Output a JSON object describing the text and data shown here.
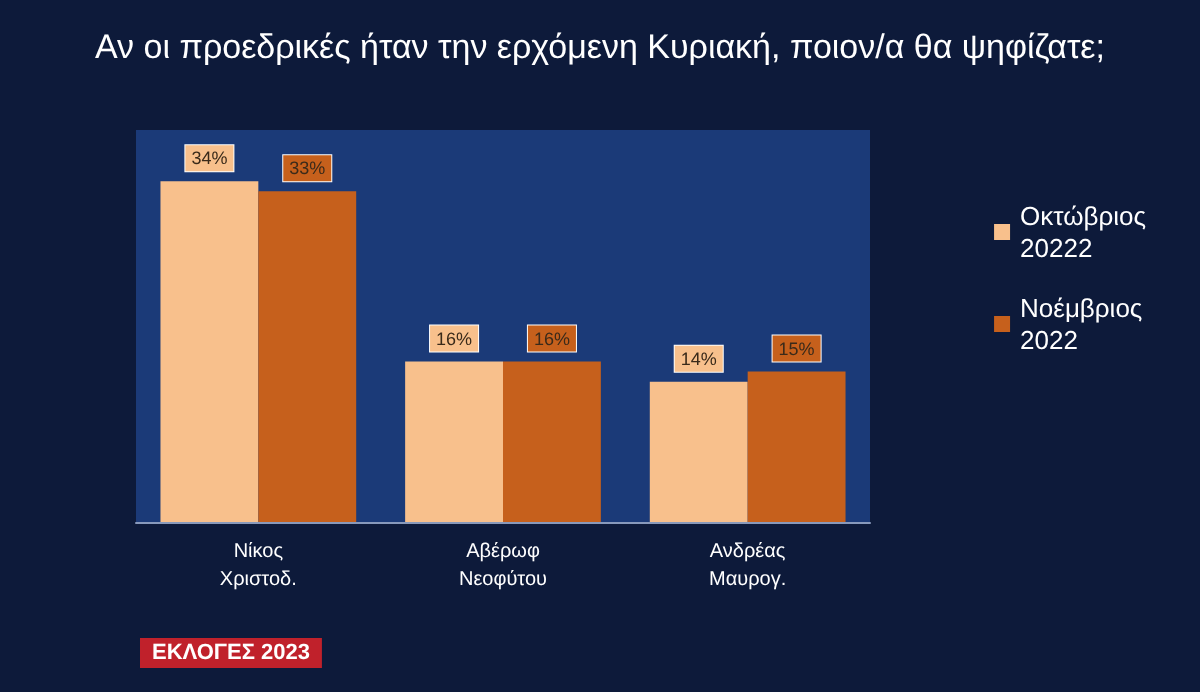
{
  "chart_data": {
    "type": "bar",
    "title": "Αν οι προεδρικές ήταν την ερχόμενη Κυριακή, ποιον/α θα ψηφίζατε;",
    "categories": [
      "Νίκος Χριστοδ.",
      "Αβέρωφ Νεοφύτου",
      "Ανδρέας Μαυρογ."
    ],
    "series": [
      {
        "name": "Οκτώβριος 20222",
        "color": "#f8c08c",
        "values": [
          34,
          16,
          14
        ],
        "value_labels": [
          "34%",
          "16%",
          "14%"
        ]
      },
      {
        "name": "Νοέμβριος 2022",
        "color": "#c6601c",
        "values": [
          33,
          16,
          15
        ],
        "value_labels": [
          "33%",
          "16%",
          "15%"
        ]
      }
    ],
    "legend": "right",
    "annotations": [
      "ΕΚΛΟΓΕΣ 2023"
    ]
  }
}
